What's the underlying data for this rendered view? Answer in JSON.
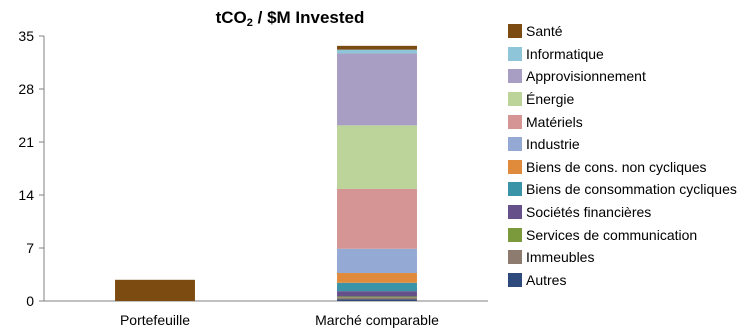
{
  "chart_data": {
    "type": "bar",
    "stacked": true,
    "title": {
      "main": "tCO",
      "subscript": "2",
      "suffix": " / $M Invested"
    },
    "xlabel": "",
    "ylabel": "",
    "ylim": [
      0,
      35
    ],
    "yticks": [
      0,
      7,
      14,
      21,
      28,
      35
    ],
    "grid": false,
    "legend_position": "right",
    "categories": [
      "Portefeuille",
      "Marché comparable"
    ],
    "series": [
      {
        "name": "Autres",
        "color": "#2e4a7d",
        "values": [
          0,
          0.2
        ]
      },
      {
        "name": "Immeubles",
        "color": "#8c7b6e",
        "values": [
          0,
          0.3
        ]
      },
      {
        "name": "Services de communication",
        "color": "#7a9a3c",
        "values": [
          0,
          0.1
        ]
      },
      {
        "name": "Sociétés financières",
        "color": "#66508a",
        "values": [
          0,
          0.7
        ]
      },
      {
        "name": "Biens de consommation cycliques",
        "color": "#3a93a6",
        "values": [
          0,
          1.1
        ]
      },
      {
        "name": "Biens de cons. non cycliques",
        "color": "#e08a3c",
        "values": [
          0,
          1.3
        ]
      },
      {
        "name": "Industrie",
        "color": "#94aad5",
        "values": [
          0,
          3.2
        ]
      },
      {
        "name": "Matériels",
        "color": "#d49594",
        "values": [
          0,
          7.9
        ]
      },
      {
        "name": "Énergie",
        "color": "#bcd39a",
        "values": [
          0,
          8.4
        ]
      },
      {
        "name": "Approvisionnement",
        "color": "#a89dc2",
        "values": [
          0,
          9.5
        ]
      },
      {
        "name": "Informatique",
        "color": "#8ec5d9",
        "values": [
          0,
          0.5
        ]
      },
      {
        "name": "Santé",
        "color": "#7b4b12",
        "values": [
          2.8,
          0.5
        ]
      }
    ]
  }
}
